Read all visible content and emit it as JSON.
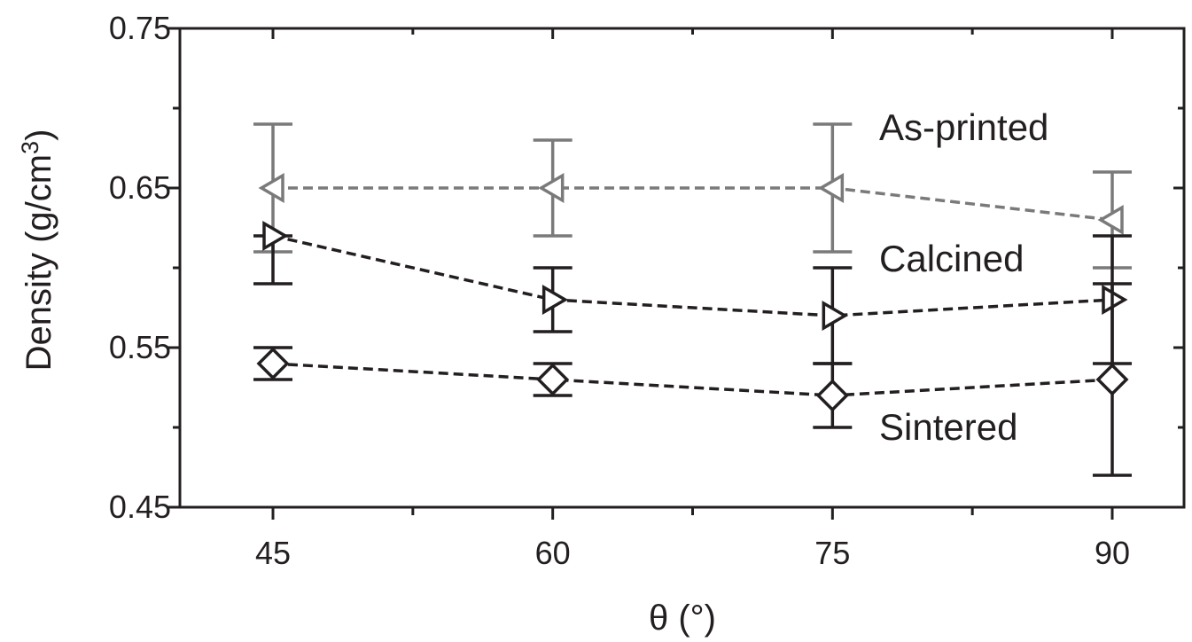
{
  "chart_data": {
    "type": "line",
    "xlabel": "θ (°)",
    "ylabel": "Density (g/cm³)",
    "ylabel_main": "Density (g/cm",
    "ylabel_sup": "3",
    "ylabel_end": ")",
    "x": [
      45,
      60,
      75,
      90
    ],
    "x_ticks": [
      "45",
      "60",
      "75",
      "90"
    ],
    "y_ticks": [
      "0.45",
      "0.55",
      "0.65",
      "0.75"
    ],
    "ylim": [
      0.45,
      0.75
    ],
    "grid": false,
    "series": [
      {
        "name": "As-printed",
        "marker": "triangle-left",
        "color": "#7a7a7a",
        "values": [
          0.65,
          0.65,
          0.65,
          0.63
        ],
        "err_low": [
          0.61,
          0.62,
          0.61,
          0.6
        ],
        "err_high": [
          0.69,
          0.68,
          0.69,
          0.66
        ]
      },
      {
        "name": "Calcined",
        "marker": "triangle-right",
        "color": "#231f20",
        "values": [
          0.62,
          0.58,
          0.57,
          0.58
        ],
        "err_low": [
          0.59,
          0.56,
          0.54,
          0.54
        ],
        "err_high": [
          0.62,
          0.6,
          0.6,
          0.62
        ]
      },
      {
        "name": "Sintered",
        "marker": "diamond",
        "color": "#231f20",
        "values": [
          0.54,
          0.53,
          0.52,
          0.53
        ],
        "err_low": [
          0.53,
          0.52,
          0.5,
          0.47
        ],
        "err_high": [
          0.55,
          0.54,
          0.54,
          0.59
        ]
      }
    ]
  }
}
